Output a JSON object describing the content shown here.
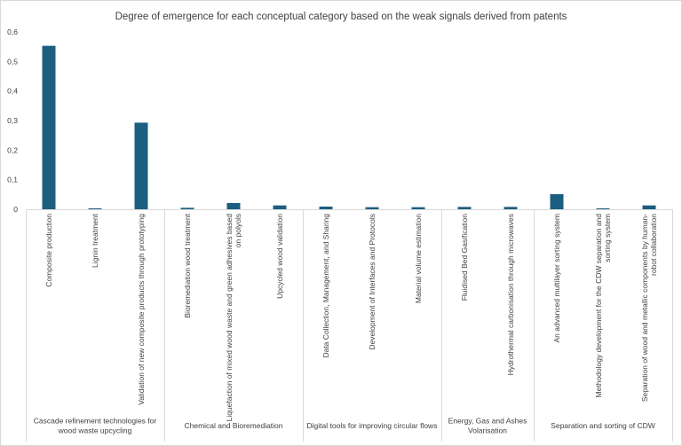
{
  "chart_data": {
    "type": "bar",
    "title": "Degree of emergence for each conceptual category based on the weak signals derived from patents",
    "xlabel": "",
    "ylabel": "",
    "ylim": [
      0,
      0.6
    ],
    "yticks": [
      "0",
      "0,1",
      "0,2",
      "0,3",
      "0,4",
      "0,5",
      "0,6"
    ],
    "grid": false,
    "legend": "none",
    "bar_color": "#1b5e80",
    "groups": [
      {
        "name": "Cascade refinement technologies for wood waste upcycling",
        "name_lines": [
          "Cascade refinement technologies for",
          "wood waste upcycling"
        ],
        "categories": [
          {
            "label": "Composite production",
            "lines": [
              "Composite production"
            ],
            "value": 0.553
          },
          {
            "label": "Lignin treatment",
            "lines": [
              "Lignin treatment"
            ],
            "value": 0.003
          },
          {
            "label": "Validation of new composite products through prototyping",
            "lines": [
              "Validation of new composite products through prototyping"
            ],
            "value": 0.293
          }
        ]
      },
      {
        "name": "Chemical and Bioremediation",
        "name_lines": [
          "Chemical and Bioremediation"
        ],
        "categories": [
          {
            "label": "Bioremediation wood treatment",
            "lines": [
              "Bioremediation wood treatment"
            ],
            "value": 0.005
          },
          {
            "label": "Liquefaction of mixed wood waste and green adhesives based on polyols",
            "lines": [
              "Liquefaction of mixed wood waste and green adhesives based",
              "on polyols"
            ],
            "value": 0.021
          },
          {
            "label": "Upcycled wood validation",
            "lines": [
              "Upcycled wood validation"
            ],
            "value": 0.013
          }
        ]
      },
      {
        "name": "Digital tools for improving circular flows",
        "name_lines": [
          "Digital tools for improving circular flows"
        ],
        "categories": [
          {
            "label": "Data Collection, Management, and Sharing",
            "lines": [
              "Data Collection, Management, and Sharing"
            ],
            "value": 0.009
          },
          {
            "label": "Development of Interfaces and Protocols",
            "lines": [
              "Development of Interfaces and Protocols"
            ],
            "value": 0.007
          },
          {
            "label": "Material volume estimation",
            "lines": [
              "Material volume estimation"
            ],
            "value": 0.007
          }
        ]
      },
      {
        "name": "Energy, Gas and Ashes Volarisation",
        "name_lines": [
          "Energy, Gas and Ashes",
          "Volarisation"
        ],
        "categories": [
          {
            "label": "Fluidised Bed Gasification",
            "lines": [
              "Fluidised Bed Gasification"
            ],
            "value": 0.008
          },
          {
            "label": "Hydrothermal carbonisation through microwaves",
            "lines": [
              "Hydrothermal carbonisation through microwaves"
            ],
            "value": 0.008
          }
        ]
      },
      {
        "name": "Separation and sorting of CDW",
        "name_lines": [
          "Separation and sorting of CDW"
        ],
        "categories": [
          {
            "label": "An advanced multilayer sorting system",
            "lines": [
              "An advanced multilayer sorting system"
            ],
            "value": 0.051
          },
          {
            "label": "Methodology development for the CDW separation and sorting system",
            "lines": [
              "Methodology development for the CDW separation and",
              "sorting system"
            ],
            "value": 0.003
          },
          {
            "label": "Separation of wood and metallic components by human-robot collaboration",
            "lines": [
              "Separation of wood and metallic components by human-",
              "robot collaboration"
            ],
            "value": 0.013
          }
        ]
      }
    ]
  }
}
